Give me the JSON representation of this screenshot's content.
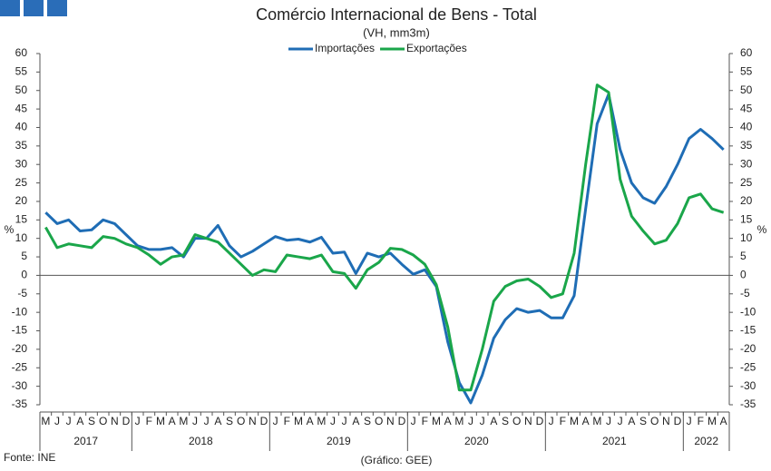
{
  "chart_data": {
    "type": "line",
    "title": "Comércio Internacional de Bens - Total",
    "subtitle": "(VH, mm3m)",
    "y_label": "%",
    "y2_label": "%",
    "source": "Fonte: INE",
    "credit": "(Gráfico: GEE)",
    "groups": [
      {
        "label": "2017",
        "categories": [
          "M",
          "J",
          "J",
          "A",
          "S",
          "O",
          "N",
          "D"
        ]
      },
      {
        "label": "2018",
        "categories": [
          "J",
          "F",
          "M",
          "A",
          "M",
          "J",
          "J",
          "A",
          "S",
          "O",
          "N",
          "D"
        ]
      },
      {
        "label": "2019",
        "categories": [
          "J",
          "F",
          "M",
          "A",
          "M",
          "J",
          "J",
          "A",
          "S",
          "O",
          "N",
          "D"
        ]
      },
      {
        "label": "2020",
        "categories": [
          "J",
          "F",
          "M",
          "A",
          "M",
          "J",
          "J",
          "A",
          "S",
          "O",
          "N",
          "D"
        ]
      },
      {
        "label": "2021",
        "categories": [
          "J",
          "F",
          "M",
          "A",
          "M",
          "J",
          "J",
          "A",
          "S",
          "O",
          "N",
          "D"
        ]
      },
      {
        "label": "2022",
        "categories": [
          "J",
          "F",
          "M",
          "A"
        ]
      }
    ],
    "series": [
      {
        "name": "Importações",
        "color": "#1f6db5",
        "values": [
          17,
          14,
          15,
          12,
          12.3,
          15,
          14,
          11,
          8,
          7,
          7,
          7.5,
          5,
          10,
          10,
          13.5,
          8,
          5,
          6.5,
          8.5,
          10.5,
          9.5,
          9.8,
          9,
          10.3,
          6,
          6.3,
          0.5,
          6,
          5,
          6,
          3,
          0.3,
          1.5,
          -3,
          -18,
          -29,
          -34.5,
          -27,
          -17,
          -12,
          -9,
          -10,
          -9.5,
          -11.5,
          -11.5,
          -5.5,
          18,
          41,
          49,
          34,
          25,
          21,
          19.5,
          24,
          30,
          37,
          39.5,
          37,
          34
        ]
      },
      {
        "name": "Exportações",
        "color": "#1aa64a",
        "values": [
          13,
          7.5,
          8.5,
          8,
          7.5,
          10.5,
          10,
          8.5,
          7.5,
          5.5,
          3,
          5,
          5.5,
          11,
          10,
          9,
          6,
          3,
          0,
          1.5,
          1,
          5.5,
          5,
          4.5,
          5.5,
          1,
          0.5,
          -3.5,
          1.5,
          3.5,
          7.3,
          7,
          5.5,
          3,
          -2.5,
          -14,
          -31,
          -31,
          -20,
          -7,
          -3,
          -1.5,
          -1,
          -3,
          -6,
          -5,
          6,
          30,
          51.5,
          49.5,
          26,
          16,
          12,
          8.5,
          9.5,
          14,
          21,
          22,
          18,
          17
        ]
      }
    ],
    "ylim": [
      -35,
      60
    ],
    "yticks": [
      -35,
      -30,
      -25,
      -20,
      -15,
      -10,
      -5,
      0,
      5,
      10,
      15,
      20,
      25,
      30,
      35,
      40,
      45,
      50,
      55,
      60
    ],
    "y2lim": [
      -35,
      60
    ],
    "y2ticks": [
      -35,
      -30,
      -25,
      -20,
      -15,
      -10,
      -5,
      0,
      5,
      10,
      15,
      20,
      25,
      30,
      35,
      40,
      45,
      50,
      55,
      60
    ],
    "legend": "top"
  }
}
